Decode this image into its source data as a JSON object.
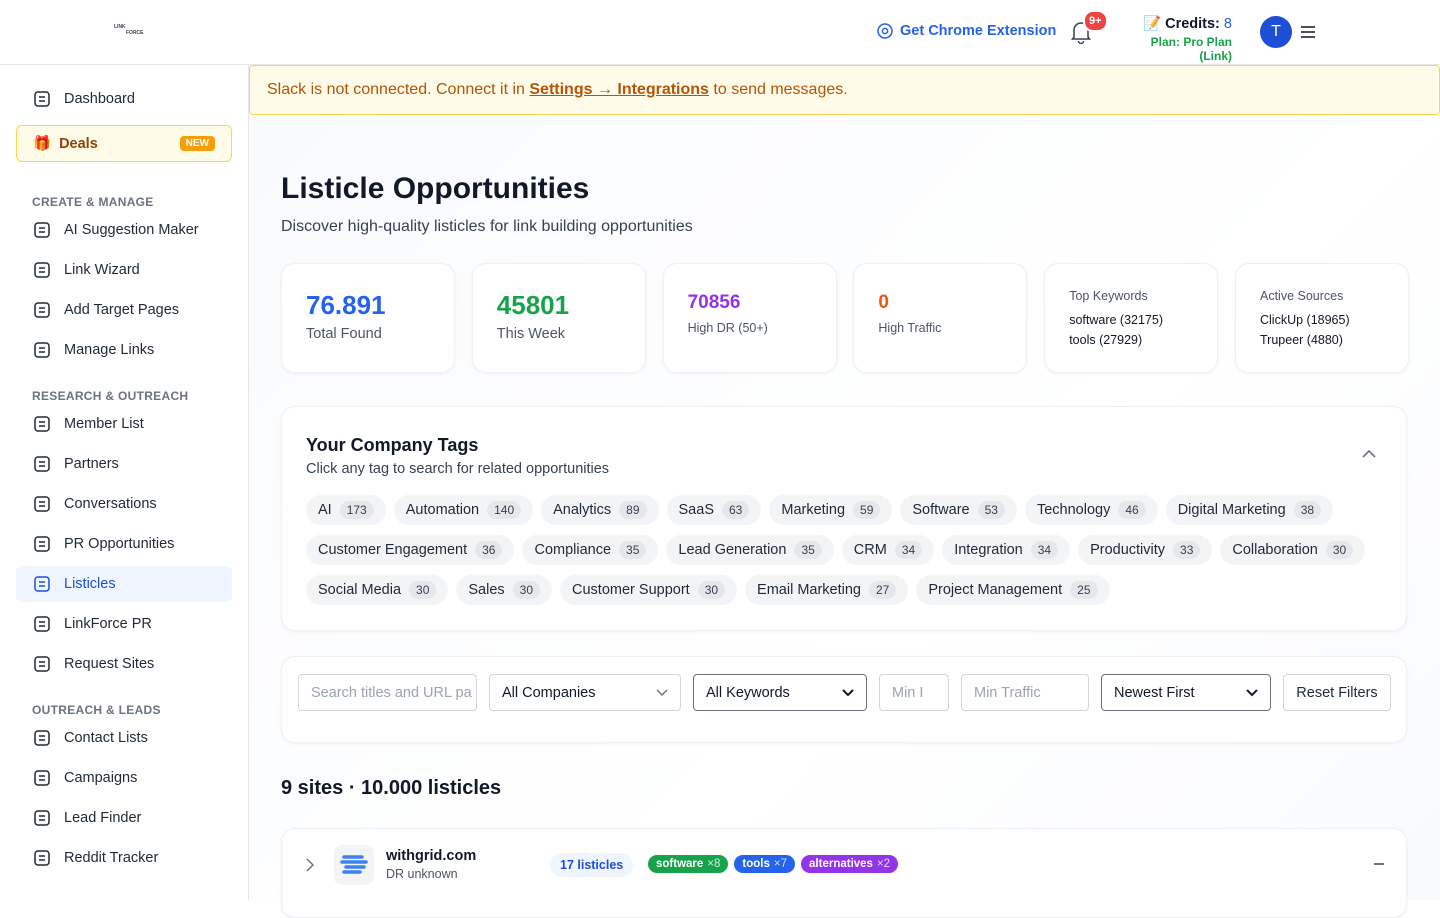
{
  "header": {
    "logo_top": "LINK",
    "logo_bottom": "FORCE",
    "chrome_extension": "Get Chrome Extension",
    "notifications": "9+",
    "credits_label": "Credits:",
    "credits_value": "8",
    "plan": "Plan: Pro Plan (Link)",
    "avatar": "T"
  },
  "sidebar": {
    "top": [
      "Dashboard"
    ],
    "deals": {
      "label": "Deals",
      "badge": "NEW"
    },
    "groups": [
      {
        "title": "CREATE & MANAGE",
        "items": [
          "AI Suggestion Maker",
          "Link Wizard",
          "Add Target Pages",
          "Manage Links"
        ]
      },
      {
        "title": "RESEARCH & OUTREACH",
        "items": [
          "Member List",
          "Partners",
          "Conversations",
          "PR Opportunities",
          "Listicles",
          "LinkForce PR",
          "Request Sites"
        ]
      },
      {
        "title": "OUTREACH & LEADS",
        "items": [
          "Contact Lists",
          "Campaigns",
          "Lead Finder",
          "Reddit Tracker"
        ]
      }
    ]
  },
  "banner": {
    "before": "Slack is not connected. Connect it in ",
    "link": "Settings → Integrations",
    "after": " to send messages."
  },
  "page": {
    "title": "Listicle Opportunities",
    "subtitle": "Discover high-quality listicles for link building opportunities"
  },
  "stats": [
    {
      "value": "76.891",
      "label": "Total Found",
      "color": "#2563eb"
    },
    {
      "value": "45801",
      "label": "This Week",
      "color": "#16a34a"
    },
    {
      "value": "70856",
      "label": "High DR (50+)",
      "color": "#9333ea"
    },
    {
      "value": "0",
      "label": "High Traffic",
      "color": "#ea580c"
    }
  ],
  "info_cards": [
    {
      "title": "Top Keywords",
      "lines": [
        "software (32175)",
        "tools (27929)"
      ]
    },
    {
      "title": "Active Sources",
      "lines": [
        "ClickUp (18965)",
        "Trupeer (4880)"
      ]
    }
  ],
  "tags": {
    "title": "Your Company Tags",
    "subtitle": "Click any tag to search for related opportunities",
    "items": [
      {
        "name": "AI",
        "count": 173
      },
      {
        "name": "Automation",
        "count": 140
      },
      {
        "name": "Analytics",
        "count": 89
      },
      {
        "name": "SaaS",
        "count": 63
      },
      {
        "name": "Marketing",
        "count": 59
      },
      {
        "name": "Software",
        "count": 53
      },
      {
        "name": "Technology",
        "count": 46
      },
      {
        "name": "Digital Marketing",
        "count": 38
      },
      {
        "name": "Customer Engagement",
        "count": 36
      },
      {
        "name": "Compliance",
        "count": 35
      },
      {
        "name": "Lead Generation",
        "count": 35
      },
      {
        "name": "CRM",
        "count": 34
      },
      {
        "name": "Integration",
        "count": 34
      },
      {
        "name": "Productivity",
        "count": 33
      },
      {
        "name": "Collaboration",
        "count": 30
      },
      {
        "name": "Social Media",
        "count": 30
      },
      {
        "name": "Sales",
        "count": 30
      },
      {
        "name": "Customer Support",
        "count": 30
      },
      {
        "name": "Email Marketing",
        "count": 27
      },
      {
        "name": "Project Management",
        "count": 25
      }
    ]
  },
  "filters": {
    "search": "Search titles and URL pa",
    "company": "All Companies",
    "keywords": "All Keywords",
    "min_dr": "Min I",
    "min_traffic": "Min Traffic",
    "sort": "Newest First",
    "reset": "Reset Filters"
  },
  "results": {
    "heading": "9 sites · 10.000 listicles",
    "sites": [
      {
        "domain": "withgrid.com",
        "dr": "DR unknown",
        "listicles": "17 listicles",
        "tags": [
          {
            "name": "software",
            "count": "×8",
            "color": "#16a34a"
          },
          {
            "name": "tools",
            "count": "×7",
            "color": "#2563eb"
          },
          {
            "name": "alternatives",
            "count": "×2",
            "color": "#9333ea"
          }
        ]
      }
    ]
  }
}
